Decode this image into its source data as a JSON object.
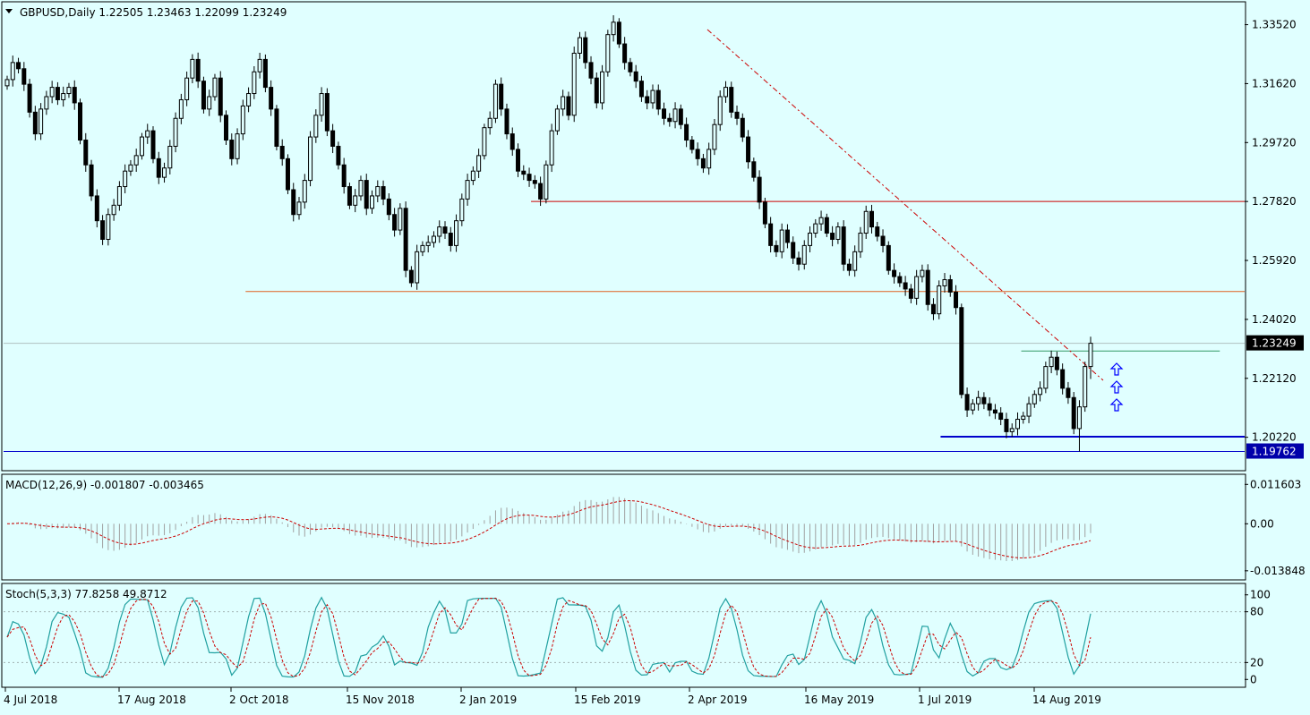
{
  "header": {
    "symbol_line": "GBPUSD,Daily  1.22505 1.23463 1.22099 1.23249",
    "macd_line": "MACD(12,26,9) -0.001807 -0.003465",
    "stoch_line": "Stoch(5,3,3) 77.8258 49.8712"
  },
  "colors": {
    "background": "#e0ffff",
    "bull_candle": "#000000",
    "bear_candle": "#000000",
    "resistance_red": "#cc0000",
    "support_orange": "#e06020",
    "support_blue": "#0000cc",
    "target_green": "#339966",
    "trend_dash": "#cc0000",
    "macd_hist": "#a0a0a0",
    "macd_signal": "#cc0000",
    "stoch_main": "#20a0a0",
    "stoch_signal": "#cc0000",
    "price_tag_black": "#000000",
    "price_tag_blue": "#0000aa"
  },
  "icons": {
    "arrows": "up-arrow-icon"
  },
  "chart_data": [
    {
      "type": "candlestick",
      "title": "GBPUSD,Daily",
      "ohlc_last": {
        "open": 1.22505,
        "high": 1.23463,
        "low": 1.22099,
        "close": 1.23249
      },
      "ylim": [
        1.192,
        1.342
      ],
      "y_ticks": [
        "1.33520",
        "1.31620",
        "1.29720",
        "1.27820",
        "1.25920",
        "1.24020",
        "1.22120",
        "1.20220"
      ],
      "price_tags": [
        {
          "label": "1.23249",
          "value": 1.23249,
          "style": "black"
        },
        {
          "label": "1.19762",
          "value": 1.19762,
          "style": "blue"
        }
      ],
      "x_ticks": [
        "4 Jul 2018",
        "17 Aug 2018",
        "2 Oct 2018",
        "15 Nov 2018",
        "2 Jan 2019",
        "15 Feb 2019",
        "2 Apr 2019",
        "16 May 2019",
        "1 Jul 2019",
        "14 Aug 2019"
      ],
      "closes": [
        1.3175,
        1.323,
        1.321,
        1.316,
        1.307,
        1.3,
        1.308,
        1.312,
        1.315,
        1.311,
        1.313,
        1.315,
        1.31,
        1.298,
        1.29,
        1.28,
        1.272,
        1.266,
        1.274,
        1.277,
        1.283,
        1.288,
        1.29,
        1.293,
        1.299,
        1.301,
        1.292,
        1.286,
        1.289,
        1.296,
        1.305,
        1.311,
        1.318,
        1.324,
        1.317,
        1.308,
        1.312,
        1.318,
        1.306,
        1.298,
        1.292,
        1.3,
        1.309,
        1.313,
        1.32,
        1.324,
        1.315,
        1.308,
        1.296,
        1.292,
        1.282,
        1.274,
        1.278,
        1.285,
        1.299,
        1.306,
        1.313,
        1.301,
        1.296,
        1.29,
        1.283,
        1.277,
        1.28,
        1.285,
        1.276,
        1.28,
        1.283,
        1.279,
        1.274,
        1.269,
        1.276,
        1.256,
        1.252,
        1.262,
        1.264,
        1.265,
        1.267,
        1.27,
        1.268,
        1.264,
        1.272,
        1.279,
        1.285,
        1.288,
        1.293,
        1.302,
        1.305,
        1.316,
        1.308,
        1.3,
        1.295,
        1.288,
        1.287,
        1.285,
        1.284,
        1.279,
        1.29,
        1.301,
        1.308,
        1.312,
        1.306,
        1.326,
        1.331,
        1.323,
        1.318,
        1.31,
        1.32,
        1.332,
        1.336,
        1.329,
        1.323,
        1.32,
        1.317,
        1.312,
        1.31,
        1.314,
        1.308,
        1.305,
        1.304,
        1.308,
        1.303,
        1.298,
        1.295,
        1.292,
        1.289,
        1.295,
        1.303,
        1.312,
        1.315,
        1.307,
        1.305,
        1.299,
        1.291,
        1.286,
        1.278,
        1.271,
        1.264,
        1.262,
        1.269,
        1.265,
        1.26,
        1.258,
        1.264,
        1.268,
        1.271,
        1.273,
        1.268,
        1.266,
        1.27,
        1.258,
        1.256,
        1.262,
        1.268,
        1.275,
        1.27,
        1.267,
        1.264,
        1.256,
        1.254,
        1.252,
        1.25,
        1.247,
        1.254,
        1.256,
        1.245,
        1.242,
        1.251,
        1.253,
        1.249,
        1.244,
        1.216,
        1.211,
        1.213,
        1.215,
        1.213,
        1.211,
        1.21,
        1.208,
        1.204,
        1.205,
        1.208,
        1.209,
        1.213,
        1.216,
        1.218,
        1.225,
        1.228,
        1.224,
        1.218,
        1.215,
        1.205,
        1.212,
        1.225,
        1.2325
      ],
      "levels": [
        {
          "name": "red-resistance",
          "value": 1.2782,
          "from": 0.425,
          "to": 1.0
        },
        {
          "name": "orange-support",
          "value": 1.2492,
          "from": 0.195,
          "to": 1.0
        },
        {
          "name": "green-target",
          "value": 1.23,
          "from": 0.82,
          "to": 0.98
        },
        {
          "name": "blue-support",
          "value": 1.2024,
          "from": 0.755,
          "to": 1.0
        },
        {
          "name": "blue-low",
          "value": 1.19762,
          "from": 0.0,
          "to": 1.0
        }
      ]
    },
    {
      "type": "bar",
      "title": "MACD(12,26,9)",
      "values_last": {
        "macd": -0.001807,
        "signal": -0.003465
      },
      "ylim": [
        -0.016,
        0.013
      ],
      "y_ticks": [
        "0.011603",
        "0.00",
        "-0.013848"
      ]
    },
    {
      "type": "line",
      "title": "Stoch(5,3,3)",
      "values_last": {
        "main": 77.8258,
        "signal": 49.8712
      },
      "ylim": [
        -5,
        105
      ],
      "y_ticks": [
        "100",
        "80",
        "20",
        "0"
      ]
    }
  ]
}
